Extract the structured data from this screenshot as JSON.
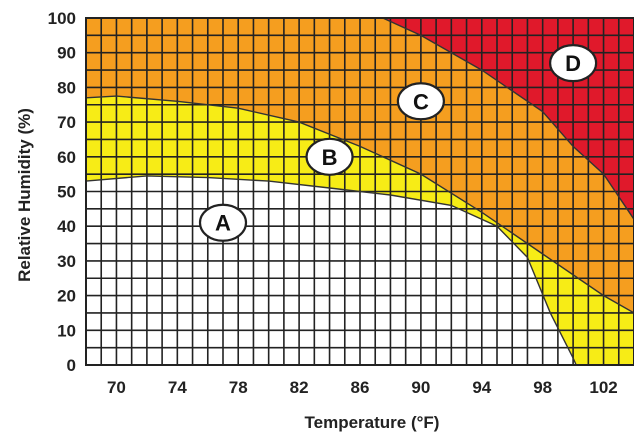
{
  "chart_data": {
    "type": "area",
    "xlabel": "Temperature (°F)",
    "ylabel": "Relative Humidity (%)",
    "xlim": [
      68,
      104
    ],
    "ylim": [
      0,
      100
    ],
    "x_ticks": [
      70,
      74,
      78,
      82,
      86,
      90,
      94,
      98,
      102
    ],
    "y_ticks": [
      0,
      10,
      20,
      30,
      40,
      50,
      60,
      70,
      80,
      90,
      100
    ],
    "grid": true,
    "zones": [
      {
        "name": "A",
        "color": "#ffffff"
      },
      {
        "name": "B",
        "color": "#f7ec16"
      },
      {
        "name": "C",
        "color": "#f59e1f"
      },
      {
        "name": "D",
        "color": "#e0192b"
      }
    ],
    "boundaries": {
      "A_B": {
        "x": [
          68,
          72,
          76,
          80,
          84,
          88,
          92,
          95,
          97,
          98.5,
          100,
          100.2
        ],
        "y": [
          53,
          54.5,
          54,
          53,
          51,
          49,
          46,
          40,
          31,
          15,
          2,
          0
        ]
      },
      "B_C": {
        "x": [
          68,
          70,
          74,
          78,
          82,
          86,
          90,
          94,
          98,
          102,
          104
        ],
        "y": [
          77,
          77.5,
          76,
          74,
          70,
          63,
          55,
          44,
          32,
          20,
          15
        ]
      },
      "C_D": {
        "x": [
          87.5,
          90,
          94,
          98,
          100,
          102,
          104
        ],
        "y": [
          100,
          95,
          85,
          73,
          63,
          55,
          42
        ]
      }
    },
    "labels": [
      {
        "text": "A",
        "x": 77,
        "y": 41
      },
      {
        "text": "B",
        "x": 84,
        "y": 60
      },
      {
        "text": "C",
        "x": 90,
        "y": 76
      },
      {
        "text": "D",
        "x": 100,
        "y": 87
      }
    ]
  }
}
